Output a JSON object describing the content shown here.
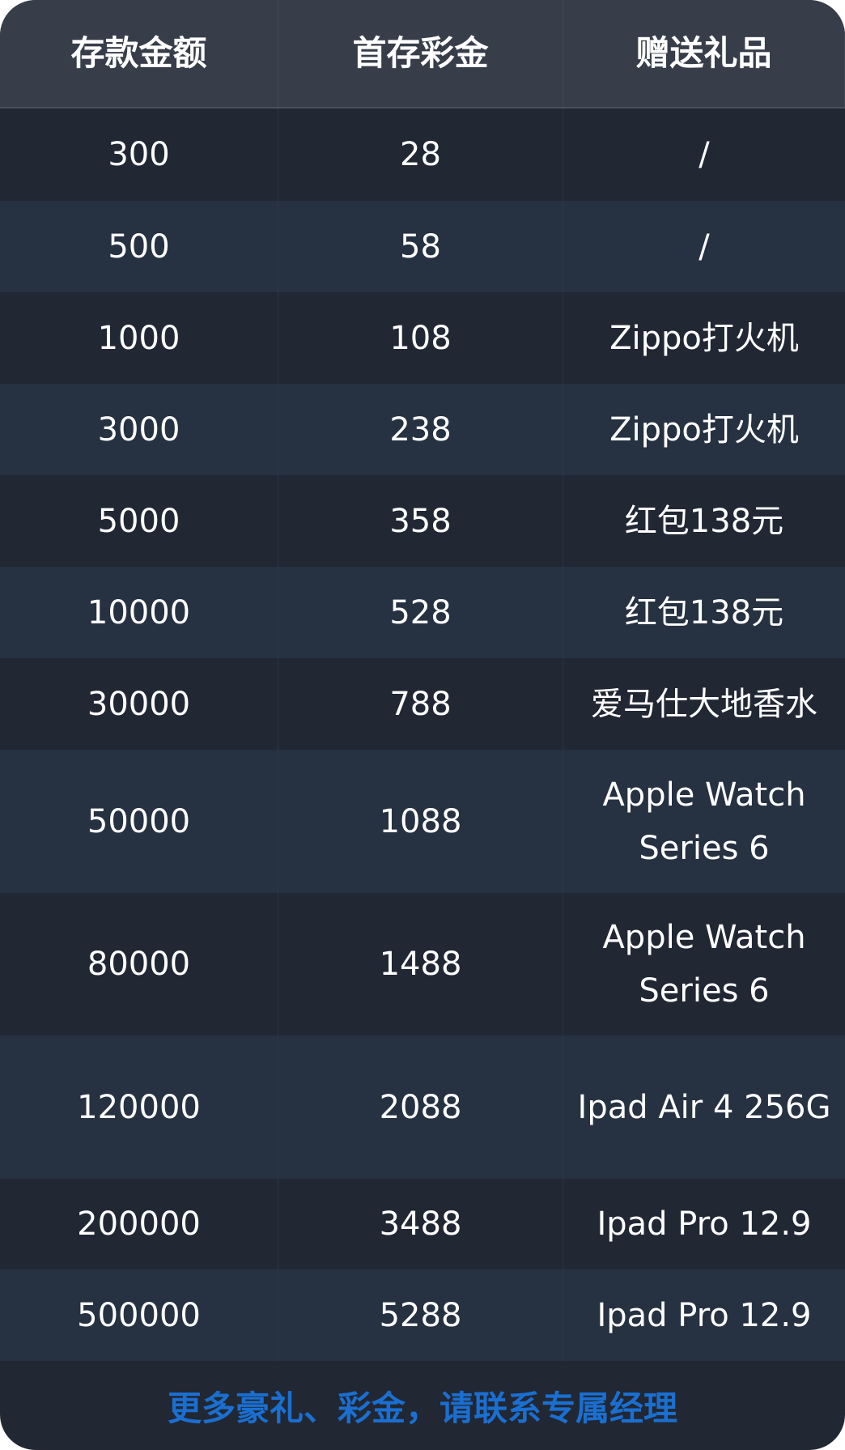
{
  "headers": [
    "存款金额",
    "首存彩金",
    "赠送礼品"
  ],
  "rows": [
    [
      "300",
      "28",
      "/"
    ],
    [
      "500",
      "58",
      "/"
    ],
    [
      "1000",
      "108",
      "Zippo打火机"
    ],
    [
      "3000",
      "238",
      "Zippo打火机"
    ],
    [
      "5000",
      "358",
      "红包138元"
    ],
    [
      "10000",
      "528",
      "红包138元"
    ],
    [
      "30000",
      "788",
      "爱马仕大地香水"
    ],
    [
      "50000",
      "1088",
      "Apple Watch Series 6"
    ],
    [
      "80000",
      "1488",
      "Apple Watch Series 6"
    ],
    [
      "120000",
      "2088",
      "Ipad Air 4 256G"
    ],
    [
      "200000",
      "3488",
      "Ipad Pro 12.9"
    ],
    [
      "500000",
      "5288",
      "Ipad Pro 12.9"
    ]
  ],
  "footer": "更多豪礼、彩金，请联系专属经理",
  "colors": {
    "header_bg": "#373e4a",
    "row_odd": "#212733",
    "row_even": "#263141",
    "footer_text": "#1a6fd0"
  }
}
